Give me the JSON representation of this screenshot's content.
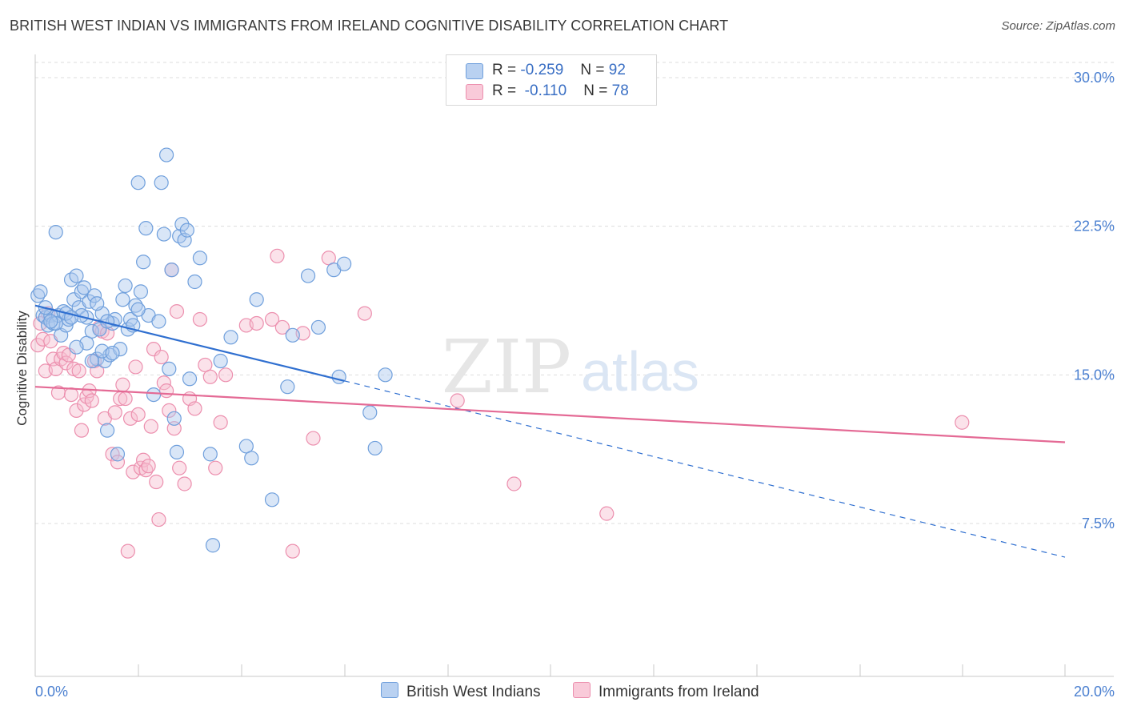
{
  "title": "BRITISH WEST INDIAN VS IMMIGRANTS FROM IRELAND COGNITIVE DISABILITY CORRELATION CHART",
  "source": "Source: ZipAtlas.com",
  "watermark": {
    "zip": "ZIP",
    "atlas": "atlas"
  },
  "legend": {
    "series1": {
      "r_label": "R =",
      "r_value": "-0.259",
      "n_label": "N =",
      "n_value": "92"
    },
    "series2": {
      "r_label": "R =",
      "r_value": "-0.110",
      "n_label": "N =",
      "n_value": "78"
    }
  },
  "colors": {
    "blue_fill": "#aac8ee",
    "blue_stroke": "#6f9fdc",
    "blue_line": "#2f6fd0",
    "pink_fill": "#f7bfd0",
    "pink_stroke": "#ec8fae",
    "pink_line": "#e46a95",
    "axis_text": "#4a7fd0",
    "grid": "#dddddd"
  },
  "chart_data": {
    "type": "scatter",
    "title": "BRITISH WEST INDIAN VS IMMIGRANTS FROM IRELAND COGNITIVE DISABILITY CORRELATION CHART",
    "xlabel": "",
    "ylabel": "Cognitive Disability",
    "xlim": [
      0,
      20
    ],
    "ylim": [
      0,
      31
    ],
    "x_tick_labels": [
      "0.0%",
      "20.0%"
    ],
    "y_ticks": [
      7.5,
      15.0,
      22.5,
      30.0
    ],
    "y_tick_labels": [
      "7.5%",
      "15.0%",
      "22.5%",
      "30.0%"
    ],
    "grid": "horizontal dashed",
    "legend_position": "top-center and bottom",
    "series": [
      {
        "name": "British West Indians",
        "color": "blue",
        "r": -0.259,
        "n": 92,
        "trend": {
          "x0": 0,
          "y0": 18.5,
          "x1": 6.0,
          "y1": 14.7,
          "dashed_to_x": 20,
          "dashed_to_y": 5.8
        },
        "points": [
          [
            0.05,
            19.0
          ],
          [
            0.1,
            19.2
          ],
          [
            0.15,
            18.0
          ],
          [
            0.2,
            17.9
          ],
          [
            0.25,
            17.5
          ],
          [
            0.3,
            18.0
          ],
          [
            0.35,
            17.6
          ],
          [
            0.4,
            22.2
          ],
          [
            0.45,
            18.0
          ],
          [
            0.5,
            17.0
          ],
          [
            0.55,
            18.2
          ],
          [
            0.6,
            17.5
          ],
          [
            0.65,
            17.8
          ],
          [
            0.7,
            19.8
          ],
          [
            0.75,
            18.8
          ],
          [
            0.8,
            20.0
          ],
          [
            0.85,
            18.4
          ],
          [
            0.9,
            19.2
          ],
          [
            0.95,
            19.4
          ],
          [
            1.0,
            16.6
          ],
          [
            1.05,
            18.7
          ],
          [
            1.1,
            17.2
          ],
          [
            1.15,
            19.0
          ],
          [
            1.2,
            15.8
          ],
          [
            1.25,
            17.3
          ],
          [
            1.3,
            18.1
          ],
          [
            1.35,
            15.7
          ],
          [
            1.4,
            12.2
          ],
          [
            1.45,
            16.0
          ],
          [
            1.5,
            17.6
          ],
          [
            1.55,
            17.8
          ],
          [
            1.6,
            11.0
          ],
          [
            1.65,
            16.3
          ],
          [
            1.7,
            18.8
          ],
          [
            1.75,
            19.5
          ],
          [
            1.8,
            17.3
          ],
          [
            1.85,
            17.8
          ],
          [
            1.9,
            17.5
          ],
          [
            1.95,
            18.5
          ],
          [
            2.0,
            24.7
          ],
          [
            2.05,
            19.2
          ],
          [
            2.1,
            20.7
          ],
          [
            2.15,
            22.4
          ],
          [
            2.2,
            18.0
          ],
          [
            2.3,
            14.0
          ],
          [
            2.4,
            17.7
          ],
          [
            2.45,
            24.7
          ],
          [
            2.5,
            22.1
          ],
          [
            2.55,
            26.1
          ],
          [
            2.6,
            15.3
          ],
          [
            2.65,
            20.3
          ],
          [
            2.7,
            12.8
          ],
          [
            2.75,
            11.1
          ],
          [
            2.8,
            22.0
          ],
          [
            2.85,
            22.6
          ],
          [
            2.9,
            21.8
          ],
          [
            2.95,
            22.3
          ],
          [
            3.0,
            14.8
          ],
          [
            3.1,
            19.7
          ],
          [
            3.2,
            20.9
          ],
          [
            3.4,
            11.0
          ],
          [
            3.45,
            6.4
          ],
          [
            3.6,
            15.7
          ],
          [
            3.8,
            16.9
          ],
          [
            4.1,
            11.4
          ],
          [
            4.2,
            10.8
          ],
          [
            4.3,
            18.8
          ],
          [
            4.6,
            8.7
          ],
          [
            4.9,
            14.4
          ],
          [
            5.3,
            20.0
          ],
          [
            5.5,
            17.4
          ],
          [
            5.8,
            20.3
          ],
          [
            6.0,
            20.6
          ],
          [
            5.9,
            14.9
          ],
          [
            6.5,
            13.1
          ],
          [
            6.6,
            11.3
          ],
          [
            5.0,
            17.0
          ],
          [
            6.8,
            15.0
          ],
          [
            0.4,
            17.6
          ],
          [
            0.8,
            16.4
          ],
          [
            1.0,
            17.9
          ],
          [
            0.2,
            18.4
          ],
          [
            0.6,
            18.1
          ],
          [
            1.3,
            16.2
          ],
          [
            1.1,
            15.7
          ],
          [
            0.9,
            18.0
          ],
          [
            0.3,
            17.7
          ],
          [
            1.5,
            16.1
          ],
          [
            2.0,
            18.3
          ],
          [
            1.2,
            18.6
          ],
          [
            0.7,
            17.9
          ],
          [
            1.4,
            17.7
          ]
        ]
      },
      {
        "name": "Immigrants from Ireland",
        "color": "pink",
        "r": -0.11,
        "n": 78,
        "trend": {
          "x0": 0,
          "y0": 14.4,
          "x1": 20,
          "y1": 11.6
        },
        "points": [
          [
            0.05,
            16.5
          ],
          [
            0.1,
            17.6
          ],
          [
            0.15,
            16.8
          ],
          [
            0.2,
            15.2
          ],
          [
            0.25,
            18.1
          ],
          [
            0.3,
            16.7
          ],
          [
            0.35,
            15.8
          ],
          [
            0.4,
            15.3
          ],
          [
            0.45,
            14.1
          ],
          [
            0.5,
            15.8
          ],
          [
            0.55,
            16.1
          ],
          [
            0.6,
            15.6
          ],
          [
            0.65,
            16.0
          ],
          [
            0.7,
            14.0
          ],
          [
            0.75,
            15.3
          ],
          [
            0.8,
            13.2
          ],
          [
            0.85,
            15.2
          ],
          [
            0.9,
            12.2
          ],
          [
            0.95,
            13.5
          ],
          [
            1.0,
            13.9
          ],
          [
            1.05,
            14.2
          ],
          [
            1.1,
            13.7
          ],
          [
            1.15,
            15.7
          ],
          [
            1.2,
            15.2
          ],
          [
            1.25,
            17.4
          ],
          [
            1.3,
            17.2
          ],
          [
            1.35,
            12.8
          ],
          [
            1.4,
            17.1
          ],
          [
            1.5,
            11.0
          ],
          [
            1.55,
            13.1
          ],
          [
            1.6,
            10.6
          ],
          [
            1.65,
            13.8
          ],
          [
            1.7,
            14.5
          ],
          [
            1.75,
            13.8
          ],
          [
            1.8,
            6.1
          ],
          [
            1.85,
            12.8
          ],
          [
            1.9,
            10.1
          ],
          [
            1.95,
            15.4
          ],
          [
            2.0,
            13.0
          ],
          [
            2.05,
            10.3
          ],
          [
            2.1,
            10.7
          ],
          [
            2.15,
            10.2
          ],
          [
            2.2,
            10.4
          ],
          [
            2.25,
            12.4
          ],
          [
            2.3,
            16.3
          ],
          [
            2.35,
            9.6
          ],
          [
            2.4,
            7.7
          ],
          [
            2.45,
            15.9
          ],
          [
            2.5,
            14.6
          ],
          [
            2.55,
            14.2
          ],
          [
            2.6,
            13.2
          ],
          [
            2.65,
            20.3
          ],
          [
            2.7,
            12.3
          ],
          [
            2.75,
            18.2
          ],
          [
            2.8,
            10.3
          ],
          [
            2.9,
            9.5
          ],
          [
            3.0,
            13.8
          ],
          [
            3.1,
            13.3
          ],
          [
            3.2,
            17.8
          ],
          [
            3.3,
            15.5
          ],
          [
            3.4,
            14.9
          ],
          [
            3.5,
            10.3
          ],
          [
            3.6,
            12.6
          ],
          [
            3.7,
            15.0
          ],
          [
            4.1,
            17.5
          ],
          [
            4.3,
            17.6
          ],
          [
            4.6,
            17.8
          ],
          [
            4.7,
            21.0
          ],
          [
            4.8,
            17.4
          ],
          [
            5.0,
            6.1
          ],
          [
            5.2,
            17.1
          ],
          [
            5.4,
            11.8
          ],
          [
            5.7,
            20.9
          ],
          [
            6.4,
            18.1
          ],
          [
            8.2,
            13.7
          ],
          [
            9.3,
            9.5
          ],
          [
            11.1,
            8.0
          ],
          [
            18.0,
            12.6
          ]
        ]
      }
    ],
    "extra_points_note": ""
  },
  "bottom_legend": {
    "series1": "British West Indians",
    "series2": "Immigrants from Ireland"
  }
}
